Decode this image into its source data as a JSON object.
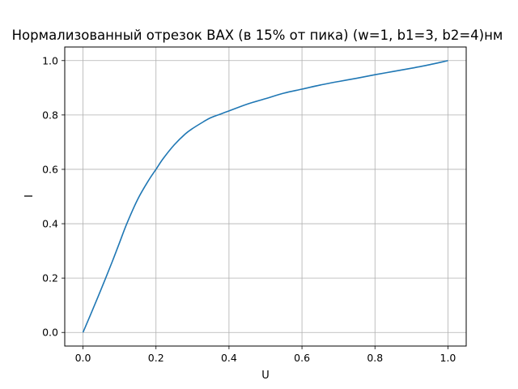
{
  "chart_data": {
    "type": "line",
    "title": "Нормализованный отрезок ВАХ (в 15% от пика) (w=1, b1=3, b2=4)нм",
    "xlabel": "U",
    "ylabel": "I",
    "xlim": [
      -0.05,
      1.05
    ],
    "ylim": [
      -0.05,
      1.05
    ],
    "x_ticks": [
      0.0,
      0.2,
      0.4,
      0.6,
      0.8,
      1.0
    ],
    "y_ticks": [
      0.0,
      0.2,
      0.4,
      0.6,
      0.8,
      1.0
    ],
    "x_tick_labels": [
      "0.0",
      "0.2",
      "0.4",
      "0.6",
      "0.8",
      "1.0"
    ],
    "y_tick_labels": [
      "0.0",
      "0.2",
      "0.4",
      "0.6",
      "0.8",
      "1.0"
    ],
    "grid": true,
    "series": [
      {
        "color": "#1f77b4",
        "x": [
          0.0,
          0.02,
          0.05,
          0.08,
          0.1,
          0.12,
          0.15,
          0.18,
          0.2,
          0.22,
          0.25,
          0.28,
          0.3,
          0.33,
          0.35,
          0.38,
          0.4,
          0.45,
          0.5,
          0.55,
          0.6,
          0.65,
          0.7,
          0.75,
          0.8,
          0.85,
          0.9,
          0.95,
          1.0
        ],
        "y": [
          0.0,
          0.063,
          0.16,
          0.26,
          0.33,
          0.4,
          0.49,
          0.56,
          0.6,
          0.64,
          0.69,
          0.73,
          0.75,
          0.775,
          0.79,
          0.805,
          0.815,
          0.84,
          0.86,
          0.88,
          0.895,
          0.91,
          0.923,
          0.935,
          0.948,
          0.96,
          0.972,
          0.985,
          1.0
        ]
      }
    ]
  }
}
